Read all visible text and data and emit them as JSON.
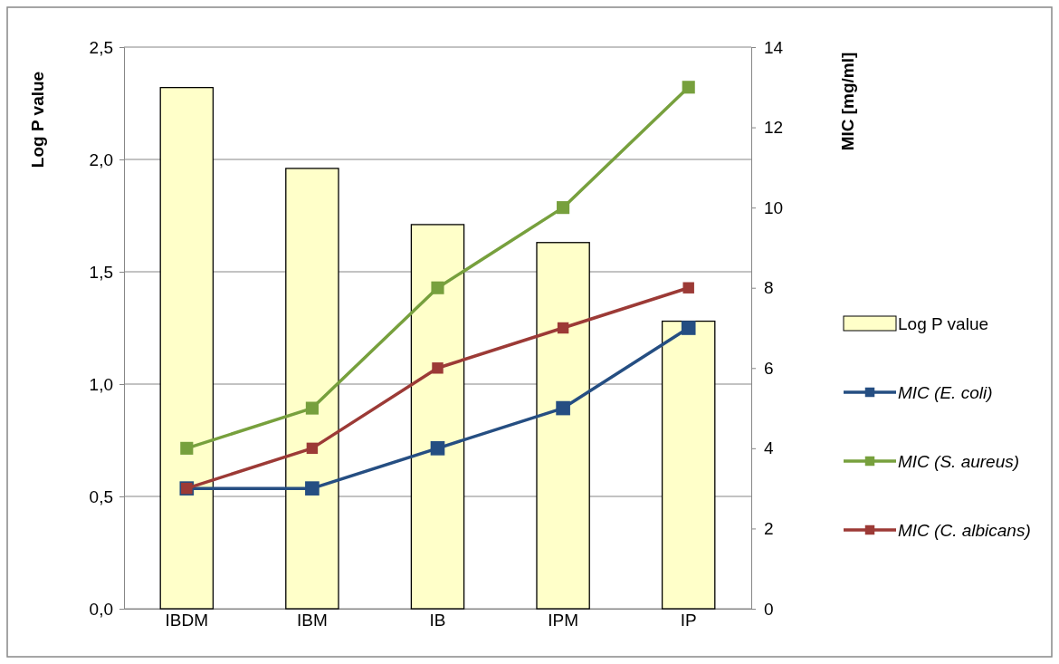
{
  "chart_data": {
    "type": "bar",
    "categories": [
      "IBDM",
      "IBM",
      "IB",
      "IPM",
      "IP"
    ],
    "ylabel": "Log P value",
    "y2label": "MIC [mg/ml]",
    "series": [
      {
        "name": "Log P value",
        "color": "#ffffc9",
        "values": [
          2.32,
          1.96,
          1.71,
          1.63,
          1.28
        ]
      },
      {
        "name": "MIC (E. coli)",
        "type": "line",
        "axis": "y2",
        "color": "#254e82",
        "values": [
          3,
          3,
          4,
          5,
          7
        ]
      },
      {
        "name": "MIC (S. aureus)",
        "type": "line",
        "axis": "y2",
        "color": "#77a03d",
        "values": [
          4,
          5,
          8,
          10,
          13
        ]
      },
      {
        "name": "MIC (C. albicans)",
        "type": "line",
        "axis": "y2",
        "color": "#9c3a36",
        "values": [
          3,
          4,
          6,
          7,
          8
        ]
      }
    ],
    "ylim": [
      0,
      2.5
    ],
    "yticks": [
      {
        "value": 0,
        "label": "0,0"
      },
      {
        "value": 0.5,
        "label": "0,5"
      },
      {
        "value": 1,
        "label": "1,0"
      },
      {
        "value": 1.5,
        "label": "1,5"
      },
      {
        "value": 2,
        "label": "2,0"
      },
      {
        "value": 2.5,
        "label": "2,5"
      }
    ],
    "y2lim": [
      0,
      14
    ],
    "y2ticks": [
      0,
      2,
      4,
      6,
      8,
      10,
      12,
      14
    ],
    "grid": "y",
    "legend": "right",
    "marker": "square",
    "line_style": "solid"
  }
}
